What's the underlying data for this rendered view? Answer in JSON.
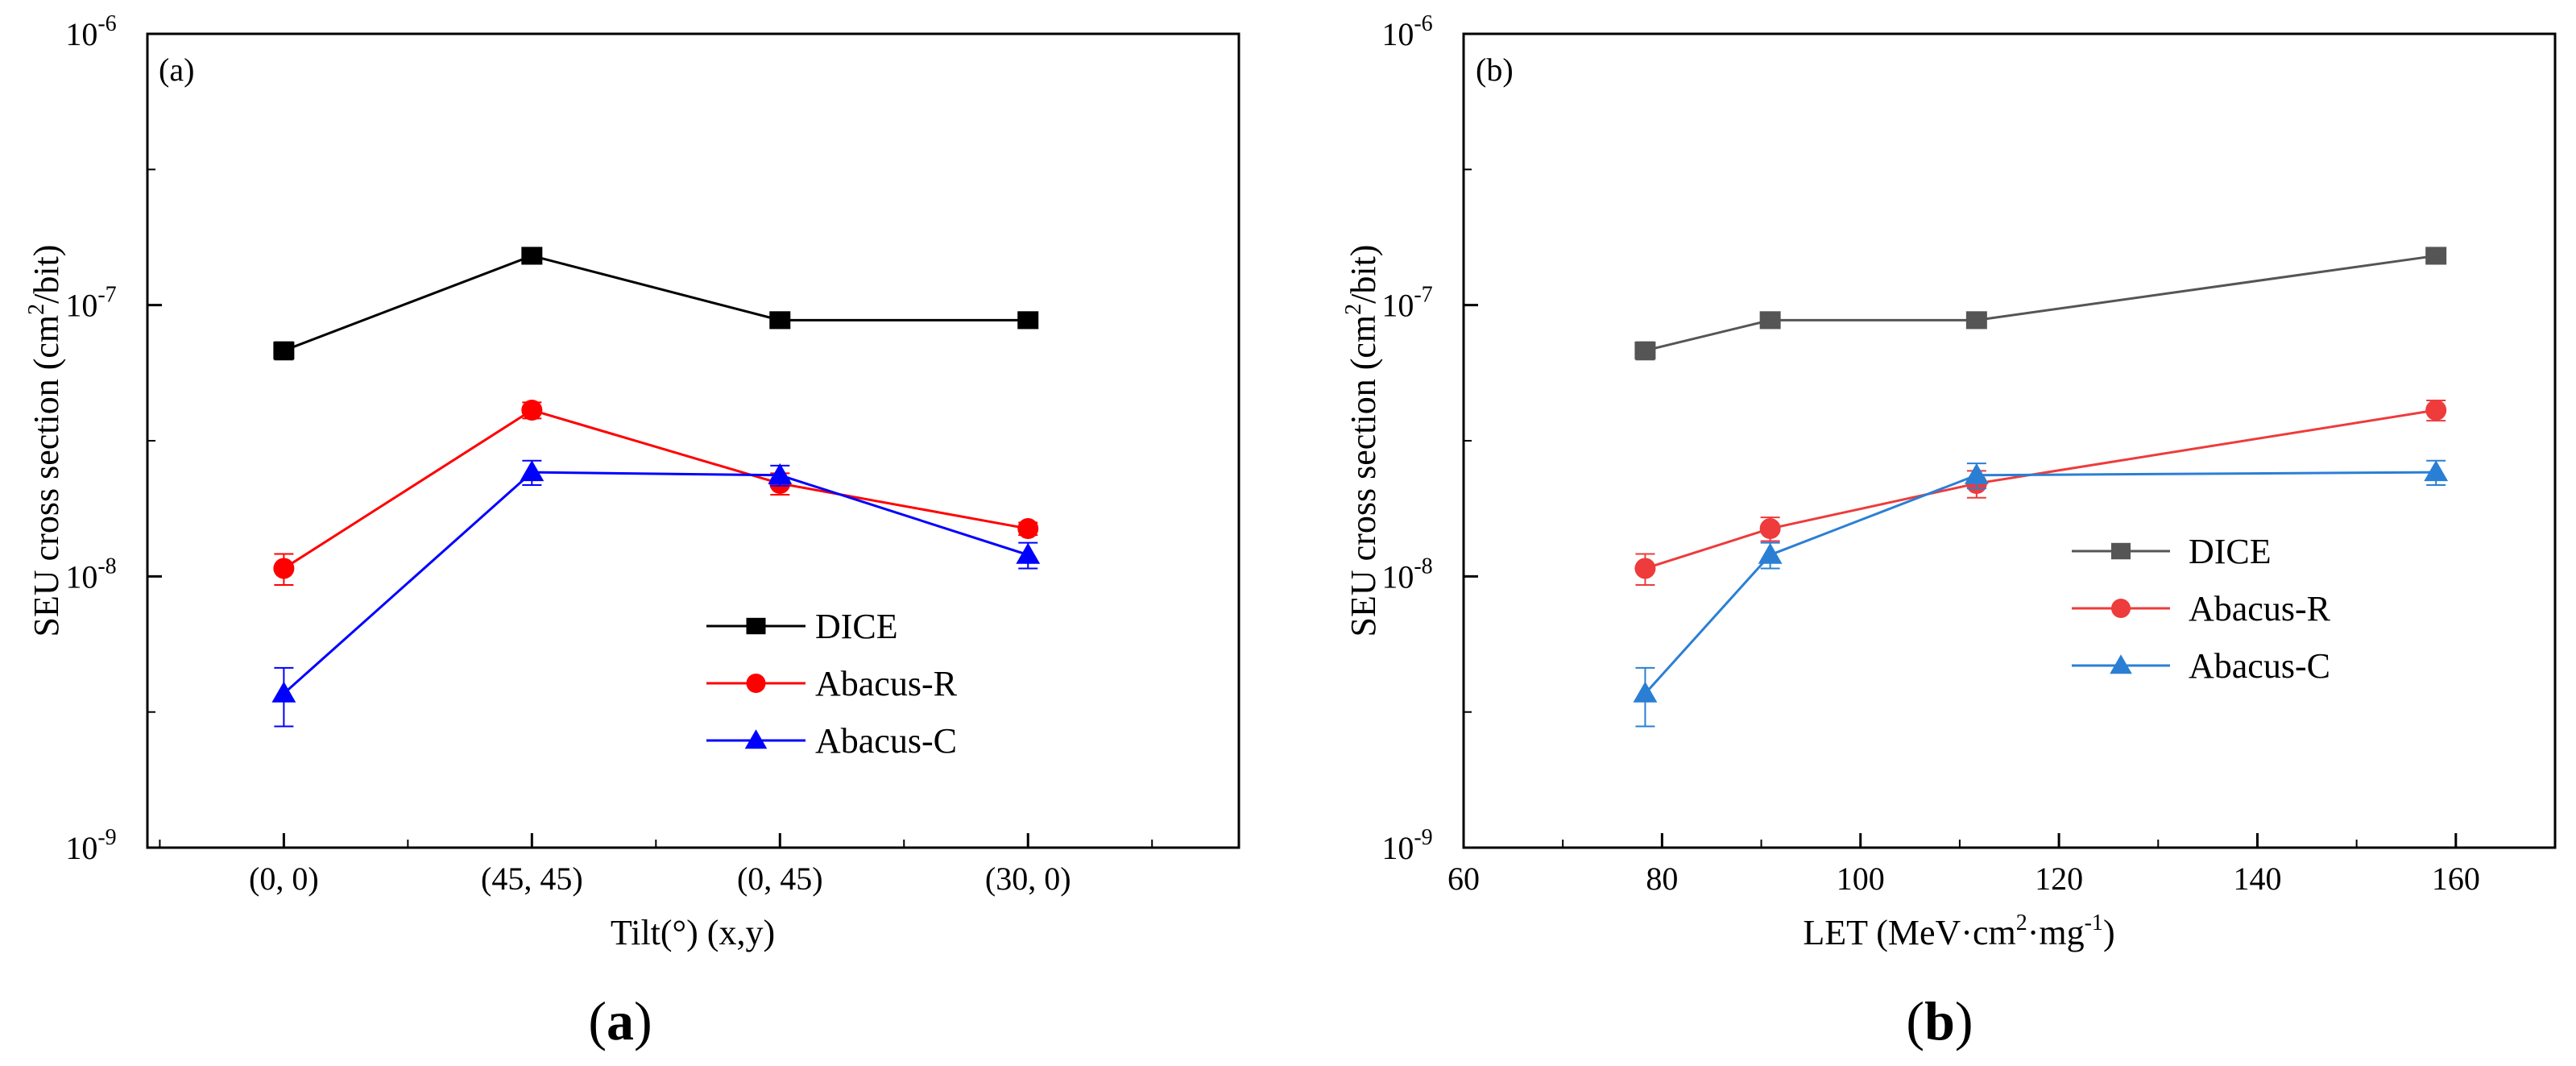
{
  "chart_data": [
    {
      "type": "line",
      "panel_label": "(a)",
      "caption_letter": "a",
      "xlabel": "Tilt(°) (x,y)",
      "ylabel_main": "SEU cross section (cm",
      "ylabel_sup": "2",
      "ylabel_tail": "/bit)",
      "y_scale": "log",
      "ylim": [
        1e-09,
        1e-06
      ],
      "y_tick_exponents": [
        "-9",
        "-8",
        "-7",
        "-6"
      ],
      "y_tick_base": "10",
      "x_axis": "categorical",
      "categories": [
        "(0, 0)",
        "(45, 45)",
        "(0, 45)",
        "(30, 0)"
      ],
      "legend_position": "center-right",
      "legend_style": "square-markers",
      "series": [
        {
          "name": "DICE",
          "color": "#000000",
          "marker": "square",
          "values": [
            6.8e-08,
            1.52e-07,
            8.8e-08,
            8.8e-08
          ],
          "err": [
            5e-09,
            9e-09,
            5.5e-09,
            5.5e-09
          ]
        },
        {
          "name": "Abacus-R",
          "color": "#ff0000",
          "marker": "circle",
          "values": [
            1.07e-08,
            4.1e-08,
            2.2e-08,
            1.5e-08
          ],
          "err": [
            1.4e-09,
            2.8e-09,
            2e-09,
            8e-10
          ]
        },
        {
          "name": "Abacus-C",
          "color": "#0000ff",
          "marker": "triangle",
          "values": [
            3.7e-09,
            2.42e-08,
            2.36e-08,
            1.2e-08
          ],
          "err": [
            9e-10,
            2.5e-09,
            2e-09,
            1.3e-09
          ]
        }
      ]
    },
    {
      "type": "line",
      "panel_label": "(b)",
      "caption_letter": "b",
      "xlabel_main": "LET (MeV·cm",
      "xlabel_sup1": "2",
      "xlabel_mid": "·mg",
      "xlabel_sup2": "-1",
      "xlabel_tail": ")",
      "ylabel_main": "SEU cross section (cm",
      "ylabel_sup": "2",
      "ylabel_tail": "/bit)",
      "y_scale": "log",
      "ylim": [
        1e-09,
        1e-06
      ],
      "y_tick_exponents": [
        "-9",
        "-8",
        "-7",
        "-6"
      ],
      "y_tick_base": "10",
      "xlim": [
        60,
        170
      ],
      "x_ticks": [
        60,
        80,
        100,
        120,
        140,
        160
      ],
      "legend_position": "center-right",
      "series": [
        {
          "name": "DICE",
          "color": "#555555",
          "marker": "square",
          "x": [
            78.3,
            90.9,
            111.7,
            158
          ],
          "values": [
            6.8e-08,
            8.8e-08,
            8.8e-08,
            1.52e-07
          ],
          "err": [
            5e-09,
            5.5e-09,
            5.5e-09,
            9e-09
          ]
        },
        {
          "name": "Abacus-R",
          "color": "#ee3b3b",
          "marker": "circle",
          "x": [
            78.3,
            90.9,
            111.7,
            158
          ],
          "values": [
            1.07e-08,
            1.5e-08,
            2.2e-08,
            4.1e-08
          ],
          "err": [
            1.4e-09,
            1.5e-09,
            2.5e-09,
            3.5e-09
          ]
        },
        {
          "name": "Abacus-C",
          "color": "#2a7fd4",
          "marker": "triangle",
          "x": [
            78.3,
            90.9,
            111.7,
            158
          ],
          "values": [
            3.7e-09,
            1.2e-08,
            2.36e-08,
            2.42e-08
          ],
          "err": [
            9e-10,
            1.3e-09,
            2.5e-09,
            2.5e-09
          ]
        }
      ]
    }
  ]
}
